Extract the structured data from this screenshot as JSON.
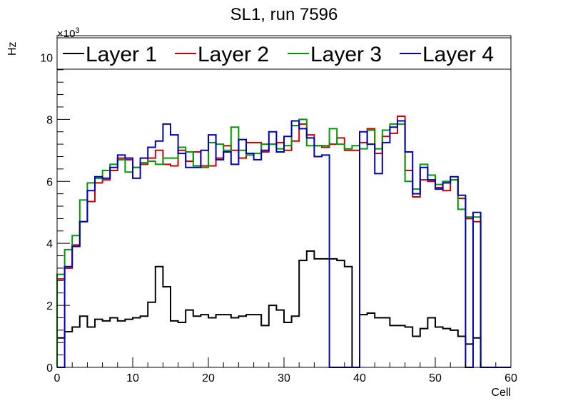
{
  "chart_data": {
    "type": "line",
    "step": true,
    "title": "SL1, run 7596",
    "xlabel": "Cell",
    "ylabel": "Hz",
    "y_exponent_label": "×10",
    "y_exponent_power": "3",
    "xlim": [
      0,
      60
    ],
    "ylim": [
      0,
      10.7
    ],
    "x_ticks": [
      0,
      10,
      20,
      30,
      40,
      50,
      60
    ],
    "y_ticks": [
      0,
      2,
      4,
      6,
      8,
      10
    ],
    "grid": false,
    "legend_position": "top",
    "bin_width": 1,
    "series": [
      {
        "name": "Layer 1",
        "color": "#000000",
        "values": [
          0.95,
          1.15,
          1.3,
          1.65,
          1.3,
          1.55,
          1.5,
          1.6,
          1.5,
          1.55,
          1.6,
          1.65,
          2.1,
          3.25,
          2.6,
          1.5,
          1.45,
          1.85,
          1.65,
          1.7,
          1.6,
          1.7,
          1.7,
          1.6,
          1.65,
          1.7,
          1.7,
          1.35,
          2.0,
          1.85,
          1.45,
          1.65,
          3.45,
          3.75,
          3.5,
          3.5,
          3.5,
          3.45,
          3.25,
          0,
          1.7,
          1.75,
          1.6,
          1.6,
          1.35,
          1.35,
          1.3,
          1.0,
          1.25,
          1.6,
          1.3,
          1.25,
          1.2,
          1.0,
          0.75,
          0.95,
          0,
          0,
          0,
          0
        ]
      },
      {
        "name": "Layer 2",
        "color": "#cc0000",
        "values": [
          2.85,
          3.2,
          3.95,
          4.7,
          5.35,
          5.95,
          6.05,
          6.35,
          6.75,
          6.7,
          6.45,
          6.55,
          6.75,
          7.0,
          6.55,
          6.5,
          7.0,
          6.65,
          6.95,
          6.5,
          6.5,
          6.75,
          7.15,
          7.0,
          6.75,
          7.25,
          7.25,
          6.95,
          7.2,
          7.25,
          7.0,
          7.3,
          7.85,
          7.5,
          7.15,
          7.1,
          7.2,
          7.4,
          7.0,
          7.0,
          7.25,
          7.7,
          6.9,
          7.45,
          7.55,
          8.1,
          6.35,
          5.5,
          6.05,
          6.0,
          5.8,
          5.7,
          6.05,
          5.45,
          4.8,
          4.7,
          0,
          0,
          0,
          0
        ]
      },
      {
        "name": "Layer 3",
        "color": "#009900",
        "values": [
          3.0,
          3.8,
          4.25,
          5.4,
          5.95,
          6.1,
          6.35,
          6.55,
          6.7,
          6.3,
          6.45,
          6.6,
          6.65,
          6.55,
          6.75,
          6.75,
          7.1,
          6.95,
          6.5,
          6.45,
          7.25,
          7.2,
          7.0,
          7.75,
          7.0,
          6.85,
          6.9,
          7.2,
          7.2,
          7.05,
          7.15,
          7.8,
          8.0,
          7.15,
          7.15,
          7.15,
          7.7,
          7.2,
          7.05,
          7.15,
          7.05,
          7.65,
          7.05,
          7.65,
          7.85,
          7.85,
          6.0,
          5.75,
          6.55,
          6.2,
          5.9,
          6.0,
          6.05,
          5.1,
          4.85,
          4.85,
          0,
          0,
          0,
          0
        ]
      },
      {
        "name": "Layer 4",
        "color": "#0000bb",
        "values": [
          0,
          3.25,
          3.9,
          4.7,
          5.7,
          6.15,
          6.1,
          6.45,
          6.85,
          6.75,
          6.1,
          6.75,
          7.1,
          7.3,
          7.85,
          7.5,
          6.9,
          6.45,
          6.45,
          7.0,
          7.5,
          6.7,
          6.95,
          6.55,
          7.35,
          6.9,
          6.7,
          7.0,
          7.6,
          6.95,
          7.45,
          7.95,
          7.7,
          7.4,
          6.8,
          6.85,
          0,
          0,
          0,
          0,
          7.6,
          7.2,
          6.25,
          7.25,
          7.75,
          7.95,
          6.95,
          5.6,
          6.45,
          6.05,
          5.75,
          5.95,
          6.15,
          5.55,
          0,
          5.0,
          0,
          0,
          0,
          0
        ]
      }
    ]
  }
}
